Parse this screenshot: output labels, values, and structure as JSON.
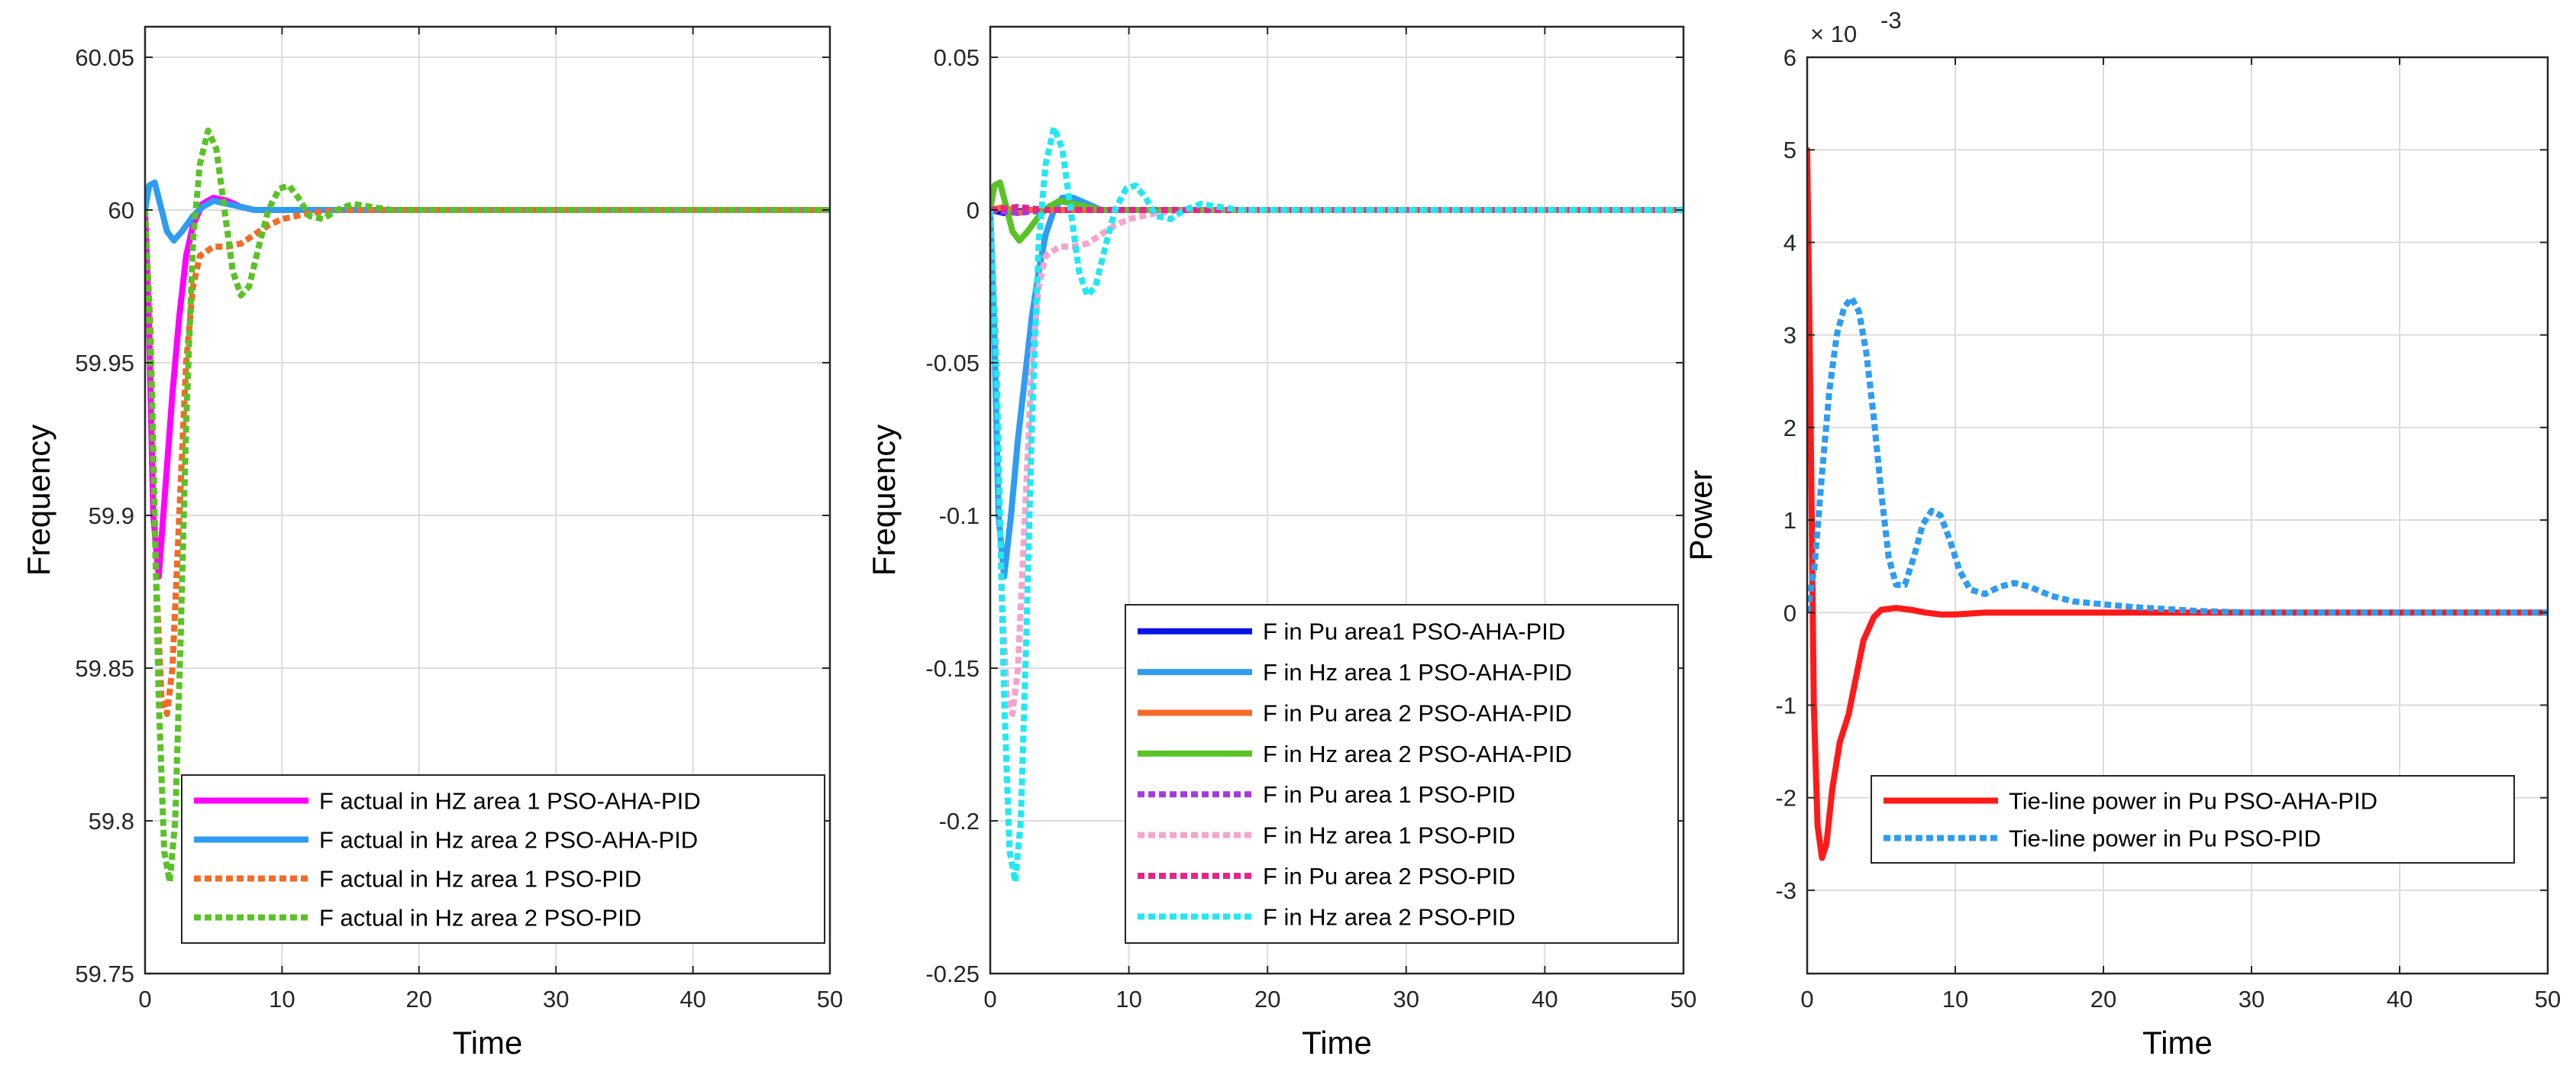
{
  "chart_data": [
    {
      "id": "panel1",
      "type": "line",
      "xlabel": "Time",
      "ylabel": "Frequency",
      "xlim": [
        0,
        50
      ],
      "ylim": [
        59.75,
        60.06
      ],
      "xticks": [
        0,
        10,
        20,
        30,
        40,
        50
      ],
      "yticks": [
        59.75,
        59.8,
        59.85,
        59.9,
        59.95,
        60,
        60.05
      ],
      "ytick_labels": [
        "59.75",
        "59.8",
        "59.85",
        "59.9",
        "59.95",
        "60",
        "60.05"
      ],
      "legend_location": "bottom-right",
      "series": [
        {
          "name": "F actual in HZ area 1 PSO-AHA-PID",
          "color": "#ff00ff",
          "dash": "solid",
          "points": [
            [
              0,
              60
            ],
            [
              0.3,
              59.96
            ],
            [
              0.6,
              59.9
            ],
            [
              1,
              59.88
            ],
            [
              1.5,
              59.91
            ],
            [
              2,
              59.94
            ],
            [
              2.5,
              59.965
            ],
            [
              3,
              59.985
            ],
            [
              3.5,
              59.995
            ],
            [
              4.2,
              60.002
            ],
            [
              5,
              60.004
            ],
            [
              6,
              60.003
            ],
            [
              7,
              60.001
            ],
            [
              8,
              60
            ],
            [
              10,
              60
            ],
            [
              50,
              60
            ]
          ]
        },
        {
          "name": "F actual in Hz area 2 PSO-AHA-PID",
          "color": "#2e9cf0",
          "dash": "solid",
          "points": [
            [
              0,
              60
            ],
            [
              0.3,
              60.008
            ],
            [
              0.7,
              60.009
            ],
            [
              1.1,
              60.002
            ],
            [
              1.6,
              59.993
            ],
            [
              2.1,
              59.99
            ],
            [
              2.7,
              59.993
            ],
            [
              3.5,
              59.998
            ],
            [
              4.2,
              60.001
            ],
            [
              5,
              60.003
            ],
            [
              6,
              60.002
            ],
            [
              7,
              60.001
            ],
            [
              8,
              60
            ],
            [
              50,
              60
            ]
          ]
        },
        {
          "name": "F actual in Hz area 1 PSO-PID",
          "color": "#f26b27",
          "dash": "dot",
          "points": [
            [
              0,
              60
            ],
            [
              0.4,
              59.96
            ],
            [
              0.8,
              59.88
            ],
            [
              1.2,
              59.84
            ],
            [
              1.6,
              59.835
            ],
            [
              2,
              59.85
            ],
            [
              2.5,
              59.9
            ],
            [
              3,
              59.95
            ],
            [
              3.5,
              59.975
            ],
            [
              4,
              59.985
            ],
            [
              5,
              59.988
            ],
            [
              6,
              59.988
            ],
            [
              7,
              59.989
            ],
            [
              8,
              59.992
            ],
            [
              9,
              59.995
            ],
            [
              10,
              59.997
            ],
            [
              12,
              59.999
            ],
            [
              14,
              60
            ],
            [
              50,
              60
            ]
          ]
        },
        {
          "name": "F actual in Hz area 2 PSO-PID",
          "color": "#5ac227",
          "dash": "dot",
          "points": [
            [
              0,
              60
            ],
            [
              0.5,
              59.94
            ],
            [
              1,
              59.84
            ],
            [
              1.4,
              59.79
            ],
            [
              1.8,
              59.78
            ],
            [
              2.2,
              59.8
            ],
            [
              2.6,
              59.86
            ],
            [
              3,
              59.93
            ],
            [
              3.5,
              59.99
            ],
            [
              4,
              60.015
            ],
            [
              4.6,
              60.026
            ],
            [
              5.2,
              60.02
            ],
            [
              5.8,
              60
            ],
            [
              6.4,
              59.98
            ],
            [
              7,
              59.972
            ],
            [
              7.6,
              59.975
            ],
            [
              8.3,
              59.988
            ],
            [
              9,
              60
            ],
            [
              9.8,
              60.007
            ],
            [
              10.5,
              60.008
            ],
            [
              11.2,
              60.004
            ],
            [
              12,
              59.998
            ],
            [
              13,
              59.997
            ],
            [
              14,
              60
            ],
            [
              15.2,
              60.002
            ],
            [
              16.5,
              60.001
            ],
            [
              18,
              60
            ],
            [
              50,
              60
            ]
          ]
        }
      ]
    },
    {
      "id": "panel2",
      "type": "line",
      "xlabel": "Time",
      "ylabel": "Frequency",
      "xlim": [
        0,
        50
      ],
      "ylim": [
        -0.25,
        0.06
      ],
      "xticks": [
        0,
        10,
        20,
        30,
        40,
        50
      ],
      "yticks": [
        -0.25,
        -0.2,
        -0.15,
        -0.1,
        -0.05,
        0,
        0.05
      ],
      "ytick_labels": [
        "-0.25",
        "-0.2",
        "-0.15",
        "-0.1",
        "-0.05",
        "0",
        "0.05"
      ],
      "legend_location": "bottom-right",
      "series": [
        {
          "name": "F in Pu area1 PSO-AHA-PID",
          "color": "#0a14e6",
          "dash": "solid",
          "points": [
            [
              0,
              0
            ],
            [
              1,
              -0.001
            ],
            [
              2,
              -0.0005
            ],
            [
              3,
              0
            ],
            [
              50,
              0
            ]
          ]
        },
        {
          "name": "F in Hz area 1 PSO-AHA-PID",
          "color": "#2e9cf0",
          "dash": "solid",
          "points": [
            [
              0,
              0
            ],
            [
              0.3,
              -0.04
            ],
            [
              0.6,
              -0.1
            ],
            [
              1,
              -0.12
            ],
            [
              1.5,
              -0.1
            ],
            [
              2,
              -0.075
            ],
            [
              2.5,
              -0.055
            ],
            [
              3,
              -0.035
            ],
            [
              3.5,
              -0.02
            ],
            [
              4,
              -0.008
            ],
            [
              4.6,
              0
            ],
            [
              5.2,
              0.004
            ],
            [
              6,
              0.004
            ],
            [
              7,
              0.002
            ],
            [
              8,
              0
            ],
            [
              50,
              0
            ]
          ]
        },
        {
          "name": "F in Pu area 2 PSO-AHA-PID",
          "color": "#f26b27",
          "dash": "solid",
          "points": [
            [
              0,
              0
            ],
            [
              1,
              0.001
            ],
            [
              2,
              -0.001
            ],
            [
              3,
              0
            ],
            [
              50,
              0
            ]
          ]
        },
        {
          "name": "F in Hz area 2 PSO-AHA-PID",
          "color": "#5ac227",
          "dash": "solid",
          "points": [
            [
              0,
              0
            ],
            [
              0.3,
              0.008
            ],
            [
              0.7,
              0.009
            ],
            [
              1.1,
              0.002
            ],
            [
              1.6,
              -0.007
            ],
            [
              2.1,
              -0.01
            ],
            [
              2.7,
              -0.007
            ],
            [
              3.5,
              -0.002
            ],
            [
              4.2,
              0.001
            ],
            [
              5,
              0.003
            ],
            [
              6,
              0.002
            ],
            [
              7,
              0.001
            ],
            [
              8,
              0
            ],
            [
              50,
              0
            ]
          ]
        },
        {
          "name": "F in Pu  area 1 PSO-PID",
          "color": "#a43ae0",
          "dash": "dot",
          "points": [
            [
              0,
              0
            ],
            [
              2,
              -0.001
            ],
            [
              4,
              0
            ],
            [
              50,
              0
            ]
          ]
        },
        {
          "name": "F in Hz  area 1 PSO-PID",
          "color": "#f7a3cd",
          "dash": "dot",
          "points": [
            [
              0,
              0
            ],
            [
              0.4,
              -0.04
            ],
            [
              0.8,
              -0.12
            ],
            [
              1.2,
              -0.16
            ],
            [
              1.6,
              -0.165
            ],
            [
              2,
              -0.15
            ],
            [
              2.5,
              -0.1
            ],
            [
              3,
              -0.05
            ],
            [
              3.5,
              -0.025
            ],
            [
              4,
              -0.015
            ],
            [
              5,
              -0.012
            ],
            [
              6,
              -0.012
            ],
            [
              7,
              -0.011
            ],
            [
              8,
              -0.008
            ],
            [
              9,
              -0.005
            ],
            [
              10,
              -0.003
            ],
            [
              12,
              -0.001
            ],
            [
              14,
              0
            ],
            [
              50,
              0
            ]
          ]
        },
        {
          "name": "F in Pu area 2 PSO-PID",
          "color": "#e8248c",
          "dash": "dot",
          "points": [
            [
              0,
              0
            ],
            [
              2,
              0.001
            ],
            [
              4,
              0
            ],
            [
              50,
              0
            ]
          ]
        },
        {
          "name": "F in Hz area 2 PSO-PID",
          "color": "#22e8f2",
          "dash": "dot",
          "points": [
            [
              0,
              0
            ],
            [
              0.5,
              -0.06
            ],
            [
              1,
              -0.16
            ],
            [
              1.4,
              -0.21
            ],
            [
              1.8,
              -0.22
            ],
            [
              2.2,
              -0.2
            ],
            [
              2.6,
              -0.14
            ],
            [
              3,
              -0.07
            ],
            [
              3.5,
              -0.01
            ],
            [
              4,
              0.015
            ],
            [
              4.6,
              0.027
            ],
            [
              5.2,
              0.02
            ],
            [
              5.8,
              0
            ],
            [
              6.4,
              -0.02
            ],
            [
              7,
              -0.028
            ],
            [
              7.6,
              -0.025
            ],
            [
              8.3,
              -0.012
            ],
            [
              9,
              0
            ],
            [
              9.8,
              0.007
            ],
            [
              10.5,
              0.008
            ],
            [
              11.2,
              0.004
            ],
            [
              12,
              -0.002
            ],
            [
              13,
              -0.003
            ],
            [
              14,
              0
            ],
            [
              15.2,
              0.002
            ],
            [
              16.5,
              0.001
            ],
            [
              18,
              0
            ],
            [
              50,
              0
            ]
          ]
        }
      ]
    },
    {
      "id": "panel3",
      "type": "line",
      "xlabel": "Time",
      "ylabel": "Power",
      "exponent_label": "× 10",
      "exponent_power": "-3",
      "xlim": [
        0,
        50
      ],
      "ylim": [
        -3.9,
        6
      ],
      "xticks": [
        0,
        10,
        20,
        30,
        40,
        50
      ],
      "yticks": [
        -3,
        -2,
        -1,
        0,
        1,
        2,
        3,
        4,
        5,
        6
      ],
      "ytick_labels": [
        "-3",
        "-2",
        "-1",
        "0",
        "1",
        "2",
        "3",
        "4",
        "5",
        "6"
      ],
      "legend_location": "bottom-right",
      "series": [
        {
          "name": "Tie-line power  in Pu PSO-AHA-PID",
          "color": "#ff1a1a",
          "dash": "solid",
          "points": [
            [
              0,
              5
            ],
            [
              0.2,
              2.5
            ],
            [
              0.45,
              -1
            ],
            [
              0.7,
              -2.3
            ],
            [
              1,
              -2.65
            ],
            [
              1.3,
              -2.5
            ],
            [
              1.7,
              -1.9
            ],
            [
              2.2,
              -1.4
            ],
            [
              2.8,
              -1.1
            ],
            [
              3.3,
              -0.7
            ],
            [
              3.8,
              -0.3
            ],
            [
              4.5,
              -0.05
            ],
            [
              5,
              0.03
            ],
            [
              6,
              0.05
            ],
            [
              7,
              0.03
            ],
            [
              8,
              0
            ],
            [
              9,
              -0.02
            ],
            [
              10,
              -0.02
            ],
            [
              12,
              0
            ],
            [
              50,
              0
            ]
          ]
        },
        {
          "name": "Tie-line power in Pu PSO-PID",
          "color": "#2e9cf0",
          "dash": "dot",
          "points": [
            [
              0,
              0
            ],
            [
              0.5,
              0.5
            ],
            [
              1,
              1.5
            ],
            [
              1.5,
              2.4
            ],
            [
              2,
              3
            ],
            [
              2.5,
              3.3
            ],
            [
              3,
              3.4
            ],
            [
              3.5,
              3.25
            ],
            [
              4,
              2.8
            ],
            [
              4.5,
              2.1
            ],
            [
              5,
              1.3
            ],
            [
              5.5,
              0.6
            ],
            [
              6,
              0.3
            ],
            [
              6.6,
              0.3
            ],
            [
              7.2,
              0.6
            ],
            [
              7.8,
              0.95
            ],
            [
              8.4,
              1.1
            ],
            [
              9,
              1.05
            ],
            [
              9.6,
              0.8
            ],
            [
              10.3,
              0.45
            ],
            [
              11,
              0.25
            ],
            [
              12,
              0.2
            ],
            [
              13,
              0.28
            ],
            [
              14,
              0.32
            ],
            [
              15,
              0.28
            ],
            [
              16.5,
              0.18
            ],
            [
              18,
              0.12
            ],
            [
              20,
              0.09
            ],
            [
              22,
              0.06
            ],
            [
              24,
              0.04
            ],
            [
              26,
              0.02
            ],
            [
              28,
              0.01
            ],
            [
              30,
              0
            ],
            [
              50,
              0
            ]
          ]
        }
      ]
    }
  ]
}
